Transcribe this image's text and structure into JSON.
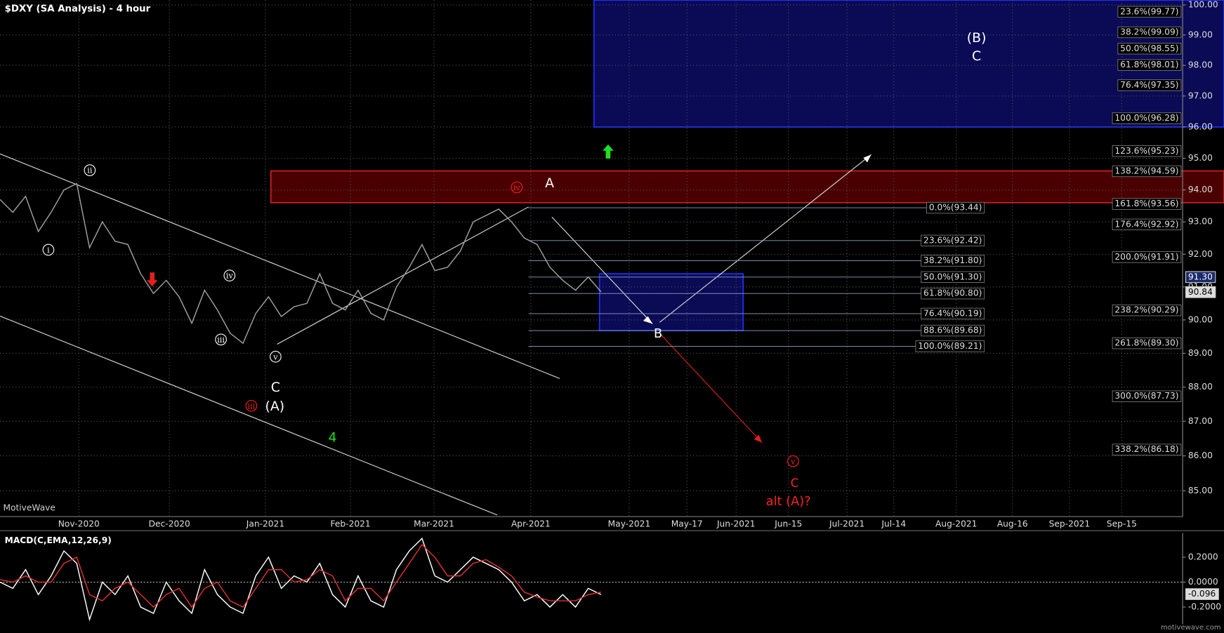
{
  "title": "$DXY (SA Analysis) - 4 hour",
  "watermark": "MotiveWave",
  "footer": "motivewave.com",
  "chart_data": [
    {
      "type": "line",
      "log_scale": true,
      "grid": true,
      "color": "#a0a0a0",
      "ylim": [
        84.27,
        100.16
      ],
      "yticks": [
        {
          "value": 85,
          "label": "85.00"
        },
        {
          "value": 86,
          "label": "86.00"
        },
        {
          "value": 87,
          "label": "87.00"
        },
        {
          "value": 88,
          "label": "88.00"
        },
        {
          "value": 89,
          "label": "89.00"
        },
        {
          "value": 90,
          "label": "90.00"
        },
        {
          "value": 91,
          "label": "91.00"
        },
        {
          "value": 92,
          "label": "92.00"
        },
        {
          "value": 93,
          "label": "93.00"
        },
        {
          "value": 94,
          "label": "94.00"
        },
        {
          "value": 95,
          "label": "95.00"
        },
        {
          "value": 96,
          "label": "96.00"
        },
        {
          "value": 97,
          "label": "97.00"
        },
        {
          "value": 98,
          "label": "98.00"
        },
        {
          "value": 99,
          "label": "99.00"
        },
        {
          "value": 100,
          "label": "100.00"
        }
      ],
      "x_axis_labels": [
        "Nov-2020",
        "Dec-2020",
        "Jan-2021",
        "Feb-2021",
        "Mar-2021",
        "Apr-2021",
        "May-2021",
        "May-17",
        "Jun-2021",
        "Jun-15",
        "Jul-2021",
        "Jul-14",
        "Aug-2021",
        "Aug-16",
        "Sep-2021",
        "Sep-15"
      ],
      "values": [
        93.7,
        93.3,
        93.8,
        92.7,
        93.3,
        94.0,
        94.2,
        92.2,
        93.0,
        92.4,
        92.3,
        91.4,
        90.8,
        91.2,
        90.7,
        89.9,
        90.9,
        90.3,
        89.6,
        89.3,
        90.2,
        90.7,
        90.1,
        90.4,
        90.5,
        91.4,
        90.5,
        90.3,
        90.9,
        90.2,
        90.0,
        91.0,
        91.6,
        92.3,
        91.5,
        91.6,
        92.1,
        93.0,
        93.2,
        93.4,
        93.0,
        92.5,
        92.3,
        91.6,
        91.2,
        90.9,
        91.3,
        90.85
      ],
      "zones": [
        {
          "low": 96.0,
          "high": 100.16,
          "color": "#0a0a55",
          "border": "#2030ff"
        },
        {
          "low": 93.6,
          "high": 94.6,
          "color": "#4a0000",
          "border": "#d02020"
        },
        {
          "low": 89.68,
          "high": 91.4,
          "color": "#0a0a55",
          "border": "#2030ff"
        }
      ],
      "fib_right": [
        {
          "label": "23.6%(99.77)",
          "value": 99.77
        },
        {
          "label": "38.2%(99.09)",
          "value": 99.09
        },
        {
          "label": "50.0%(98.55)",
          "value": 98.55
        },
        {
          "label": "61.8%(98.01)",
          "value": 98.01
        },
        {
          "label": "76.4%(97.35)",
          "value": 97.35
        },
        {
          "label": "100.0%(96.28)",
          "value": 96.28
        },
        {
          "label": "123.6%(95.23)",
          "value": 95.23
        },
        {
          "label": "138.2%(94.59)",
          "value": 94.59
        },
        {
          "label": "161.8%(93.56)",
          "value": 93.56
        },
        {
          "label": "176.4%(92.92)",
          "value": 92.92
        },
        {
          "label": "200.0%(91.91)",
          "value": 91.91
        },
        {
          "label": "238.2%(90.29)",
          "value": 90.29
        },
        {
          "label": "261.8%(89.30)",
          "value": 89.3
        },
        {
          "label": "300.0%(87.73)",
          "value": 87.73
        },
        {
          "label": "338.2%(86.18)",
          "value": 86.18
        }
      ],
      "fib_mid": [
        {
          "label": "0.0%(93.44)",
          "value": 93.44
        },
        {
          "label": "23.6%(92.42)",
          "value": 92.42
        },
        {
          "label": "38.2%(91.80)",
          "value": 91.8
        },
        {
          "label": "50.0%(91.30)",
          "value": 91.3
        },
        {
          "label": "61.8%(90.80)",
          "value": 90.8
        },
        {
          "label": "76.4%(90.19)",
          "value": 90.19
        },
        {
          "label": "88.6%(89.68)",
          "value": 89.68
        },
        {
          "label": "100.0%(89.21)",
          "value": 89.21
        }
      ],
      "price_tags": [
        {
          "value": 91.3,
          "label": "91.30"
        },
        {
          "value": 90.84,
          "label": "90.84"
        }
      ],
      "wave_labels": [
        {
          "text": "i",
          "color": "#ffffff",
          "circled": true
        },
        {
          "text": "ii",
          "color": "#ffffff",
          "circled": true
        },
        {
          "text": "iv",
          "color": "#ffffff",
          "circled": true
        },
        {
          "text": "iii",
          "color": "#ffffff",
          "circled": true
        },
        {
          "text": "v",
          "color": "#ffffff",
          "circled": true
        },
        {
          "text": "C",
          "color": "#ffffff",
          "circled": false
        },
        {
          "text": "(A)",
          "color": "#ffffff",
          "circled": false
        },
        {
          "text": "iii",
          "color": "#ff2020",
          "circled": true
        },
        {
          "text": "4",
          "color": "#20e020",
          "circled": false
        },
        {
          "text": "iv",
          "color": "#ff2020",
          "circled": true
        },
        {
          "text": "A",
          "color": "#ffffff",
          "circled": false
        },
        {
          "text": "B",
          "color": "#ffffff",
          "circled": false
        },
        {
          "text": "(B)",
          "color": "#ffffff",
          "circled": false
        },
        {
          "text": "C",
          "color": "#ffffff",
          "circled": false
        },
        {
          "text": "v",
          "color": "#ff2020",
          "circled": true
        },
        {
          "text": "C",
          "color": "#ff2020",
          "circled": false
        },
        {
          "text": "alt (A)?",
          "color": "#ff2020",
          "circled": false
        }
      ]
    },
    {
      "type": "line",
      "title": "MACD(C,EMA,12,26,9)",
      "grid": false,
      "ylim": [
        -0.3375,
        0.394
      ],
      "yticks": [
        {
          "value": 0.2,
          "label": "0.2000"
        },
        {
          "value": 0,
          "label": "0.0000"
        },
        {
          "value": -0.2,
          "label": "-0.2000"
        }
      ],
      "series": [
        {
          "color": "#ffffff",
          "values": [
            0,
            -0.05,
            0.1,
            -0.1,
            0.05,
            0.25,
            0.15,
            -0.3,
            0.0,
            -0.1,
            0.05,
            -0.2,
            -0.25,
            0.0,
            -0.15,
            -0.25,
            0.1,
            -0.1,
            -0.2,
            -0.25,
            0.05,
            0.2,
            -0.05,
            0.05,
            0.0,
            0.15,
            -0.1,
            -0.2,
            0.05,
            -0.15,
            -0.2,
            0.1,
            0.25,
            0.35,
            0.05,
            0.0,
            0.1,
            0.2,
            0.15,
            0.1,
            0.0,
            -0.15,
            -0.1,
            -0.2,
            -0.1,
            -0.2,
            -0.05,
            -0.1
          ]
        },
        {
          "color": "#e03030",
          "values": [
            0.02,
            0,
            0.05,
            0,
            0,
            0.15,
            0.2,
            -0.1,
            -0.15,
            -0.05,
            0,
            -0.1,
            -0.2,
            -0.1,
            -0.05,
            -0.2,
            -0.05,
            0,
            -0.15,
            -0.2,
            -0.05,
            0.1,
            0.1,
            0,
            0.02,
            0.1,
            0.05,
            -0.15,
            -0.05,
            -0.05,
            -0.15,
            0,
            0.15,
            0.3,
            0.2,
            0.05,
            0.05,
            0.15,
            0.18,
            0.12,
            0.05,
            -0.08,
            -0.12,
            -0.15,
            -0.15,
            -0.15,
            -0.1,
            -0.08
          ]
        }
      ],
      "price_tags": [
        {
          "value": -0.096,
          "label": "-0.096"
        }
      ]
    }
  ]
}
